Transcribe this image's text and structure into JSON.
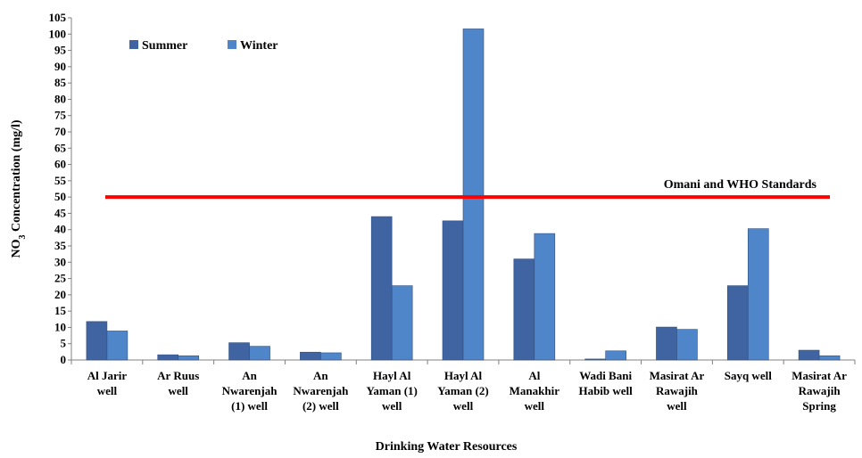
{
  "chart_data": {
    "type": "bar",
    "title": "",
    "xlabel": "Drinking Water Resources",
    "ylabel_prefix": "NO",
    "ylabel_sub": "3",
    "ylabel_suffix": " Concentration (mg/l)",
    "ylim": [
      0,
      105
    ],
    "ytick_step": 5,
    "grid": false,
    "legend_position": "top-left",
    "categories": [
      [
        "Al Jarir",
        "well"
      ],
      [
        "Ar Ruus",
        "well"
      ],
      [
        "An",
        "Nwarenjah",
        "(1) well"
      ],
      [
        "An",
        "Nwarenjah",
        "(2) well"
      ],
      [
        "Hayl Al",
        "Yaman (1)",
        "well"
      ],
      [
        "Hayl Al",
        "Yaman (2)",
        "well"
      ],
      [
        "Al",
        "Manakhir",
        "well"
      ],
      [
        "Wadi Bani",
        "Habib well"
      ],
      [
        "Masirat Ar",
        "Rawajih",
        "well"
      ],
      [
        "Sayq well"
      ],
      [
        "Masirat Ar",
        "Rawajih",
        "Spring"
      ]
    ],
    "series": [
      {
        "name": "Summer",
        "color": "#3f64a1",
        "values": [
          11.8,
          1.6,
          5.3,
          2.4,
          44.0,
          42.7,
          31.0,
          0.3,
          10.1,
          22.8,
          3.0
        ]
      },
      {
        "name": "Winter",
        "color": "#4f85c9",
        "values": [
          8.9,
          1.3,
          4.2,
          2.2,
          22.8,
          101.6,
          38.8,
          2.8,
          9.4,
          40.3,
          1.3
        ]
      }
    ],
    "reference_line": {
      "value": 50,
      "label": "Omani and WHO Standards",
      "color": "#ff0000"
    }
  }
}
